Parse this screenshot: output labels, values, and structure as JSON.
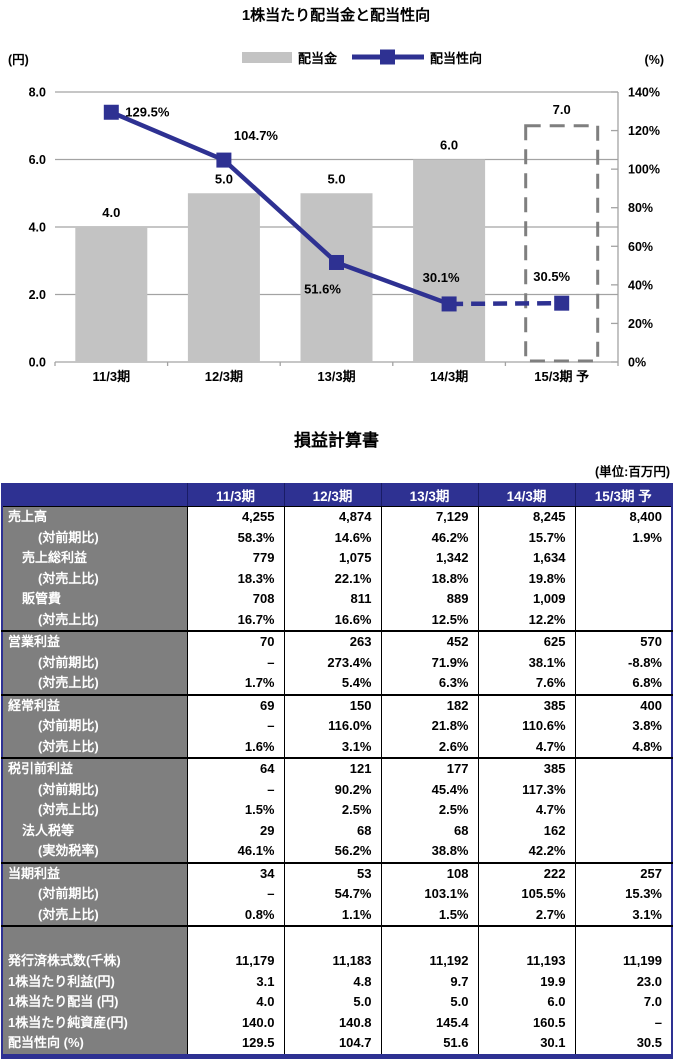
{
  "chart_data": {
    "type": "bar",
    "combo": "bar+line",
    "title": "1株当たり配当金と配当性向",
    "categories": [
      "11/3期",
      "12/3期",
      "13/3期",
      "14/3期",
      "15/3期 予"
    ],
    "series": [
      {
        "name": "配当金",
        "type": "bar",
        "axis": "left",
        "values": [
          4.0,
          5.0,
          5.0,
          6.0,
          7.0
        ],
        "labels": [
          "4.0",
          "5.0",
          "5.0",
          "6.0",
          "7.0"
        ],
        "forecast_index": 4,
        "color": "#c3c3c3"
      },
      {
        "name": "配当性向",
        "type": "line",
        "axis": "right",
        "values": [
          129.5,
          104.7,
          51.6,
          30.1,
          30.5
        ],
        "labels": [
          "129.5%",
          "104.7%",
          "51.6%",
          "30.1%",
          "30.5%"
        ],
        "forecast_index": 4,
        "color": "#2e3192"
      }
    ],
    "left_axis": {
      "unit": "(円)",
      "min": 0,
      "max": 8,
      "tick_step": 2,
      "ticks": [
        "8.0",
        "6.0",
        "4.0",
        "2.0",
        "0.0"
      ]
    },
    "right_axis": {
      "unit": "(%)",
      "min": 0,
      "max": 140,
      "tick_step": 20,
      "ticks": [
        "140%",
        "120%",
        "100%",
        "80%",
        "60%",
        "40%",
        "20%",
        "0%"
      ]
    },
    "grid": true,
    "legend_position": "top"
  },
  "table": {
    "title": "損益計算書",
    "unit_note": "(単位:百万円)",
    "columns": [
      "11/3期",
      "12/3期",
      "13/3期",
      "14/3期",
      "15/3期 予"
    ],
    "rows": [
      {
        "label": "売上高",
        "indent": 0,
        "section": false,
        "values": [
          "4,255",
          "4,874",
          "7,129",
          "8,245",
          "8,400"
        ]
      },
      {
        "label": "(対前期比)",
        "indent": 2,
        "section": false,
        "values": [
          "58.3%",
          "14.6%",
          "46.2%",
          "15.7%",
          "1.9%"
        ]
      },
      {
        "label": "売上総利益",
        "indent": 1,
        "section": false,
        "values": [
          "779",
          "1,075",
          "1,342",
          "1,634",
          ""
        ]
      },
      {
        "label": "(対売上比)",
        "indent": 2,
        "section": false,
        "values": [
          "18.3%",
          "22.1%",
          "18.8%",
          "19.8%",
          ""
        ]
      },
      {
        "label": "販管費",
        "indent": 1,
        "section": false,
        "values": [
          "708",
          "811",
          "889",
          "1,009",
          ""
        ]
      },
      {
        "label": "(対売上比)",
        "indent": 2,
        "section": false,
        "values": [
          "16.7%",
          "16.6%",
          "12.5%",
          "12.2%",
          ""
        ]
      },
      {
        "label": "営業利益",
        "indent": 0,
        "section": true,
        "values": [
          "70",
          "263",
          "452",
          "625",
          "570"
        ]
      },
      {
        "label": "(対前期比)",
        "indent": 2,
        "section": false,
        "values": [
          "–",
          "273.4%",
          "71.9%",
          "38.1%",
          "-8.8%"
        ]
      },
      {
        "label": "(対売上比)",
        "indent": 2,
        "section": false,
        "values": [
          "1.7%",
          "5.4%",
          "6.3%",
          "7.6%",
          "6.8%"
        ]
      },
      {
        "label": "経常利益",
        "indent": 0,
        "section": true,
        "values": [
          "69",
          "150",
          "182",
          "385",
          "400"
        ]
      },
      {
        "label": "(対前期比)",
        "indent": 2,
        "section": false,
        "values": [
          "–",
          "116.0%",
          "21.8%",
          "110.6%",
          "3.8%"
        ]
      },
      {
        "label": "(対売上比)",
        "indent": 2,
        "section": false,
        "values": [
          "1.6%",
          "3.1%",
          "2.6%",
          "4.7%",
          "4.8%"
        ]
      },
      {
        "label": "税引前利益",
        "indent": 0,
        "section": true,
        "values": [
          "64",
          "121",
          "177",
          "385",
          ""
        ]
      },
      {
        "label": "(対前期比)",
        "indent": 2,
        "section": false,
        "values": [
          "–",
          "90.2%",
          "45.4%",
          "117.3%",
          ""
        ]
      },
      {
        "label": "(対売上比)",
        "indent": 2,
        "section": false,
        "values": [
          "1.5%",
          "2.5%",
          "2.5%",
          "4.7%",
          ""
        ]
      },
      {
        "label": "法人税等",
        "indent": 1,
        "section": false,
        "values": [
          "29",
          "68",
          "68",
          "162",
          ""
        ]
      },
      {
        "label": "(実効税率)",
        "indent": 2,
        "section": false,
        "values": [
          "46.1%",
          "56.2%",
          "38.8%",
          "42.2%",
          ""
        ]
      },
      {
        "label": "当期利益",
        "indent": 0,
        "section": true,
        "values": [
          "34",
          "53",
          "108",
          "222",
          "257"
        ]
      },
      {
        "label": "(対前期比)",
        "indent": 2,
        "section": false,
        "values": [
          "–",
          "54.7%",
          "103.1%",
          "105.5%",
          "15.3%"
        ]
      },
      {
        "label": "(対売上比)",
        "indent": 2,
        "section": false,
        "values": [
          "0.8%",
          "1.1%",
          "1.5%",
          "2.7%",
          "3.1%"
        ]
      },
      {
        "label": "",
        "indent": 0,
        "section": true,
        "spacer": true,
        "values": [
          "",
          "",
          "",
          "",
          ""
        ]
      },
      {
        "label": "発行済株式数(千株)",
        "indent": 0,
        "section": false,
        "values": [
          "11,179",
          "11,183",
          "11,192",
          "11,193",
          "11,199"
        ]
      },
      {
        "label": "1株当たり利益(円)",
        "indent": 0,
        "section": false,
        "values": [
          "3.1",
          "4.8",
          "9.7",
          "19.9",
          "23.0"
        ]
      },
      {
        "label": "1株当たり配当 (円)",
        "indent": 0,
        "section": false,
        "values": [
          "4.0",
          "5.0",
          "5.0",
          "6.0",
          "7.0"
        ]
      },
      {
        "label": "1株当たり純資産(円)",
        "indent": 0,
        "section": false,
        "values": [
          "140.0",
          "140.8",
          "145.4",
          "160.5",
          "–"
        ]
      },
      {
        "label": "配当性向 (%)",
        "indent": 0,
        "section": false,
        "values": [
          "129.5",
          "104.7",
          "51.6",
          "30.1",
          "30.5"
        ]
      }
    ]
  },
  "colors": {
    "navy": "#2e3192",
    "bar_gray": "#c3c3c3",
    "label_gray": "#7f7f7f",
    "grid_gray": "#a3a3a3",
    "forecast_dash_gray": "#7f7f7f"
  }
}
